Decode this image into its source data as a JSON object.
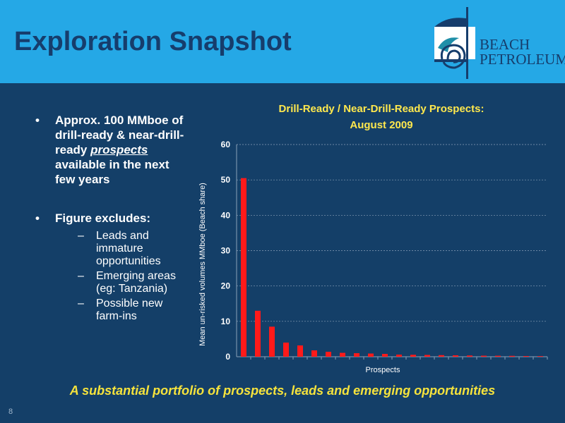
{
  "slide": {
    "title": "Exploration Snapshot",
    "page_number": "8",
    "footer": "A substantial portfolio of prospects, leads and emerging opportunities"
  },
  "logo": {
    "line1": "BEACH",
    "line2": "PETROLEUM"
  },
  "bullets": {
    "first_pre": "Approx. 100 MMboe of drill-ready & near-drill-ready ",
    "first_em": "prospects",
    "first_post": " available in the next few years",
    "second": "Figure excludes:",
    "sub_items": [
      "Leads and immature opportunities",
      "Emerging areas (eg: Tanzania)",
      "Possible new farm-ins"
    ]
  },
  "colors": {
    "header": "#25a8e6",
    "background": "#143f68",
    "title": "#163d6c",
    "chart_title": "#ffe84d",
    "bar": "#ff1a1a",
    "footer": "#f6e33c"
  },
  "chart_data": {
    "type": "bar",
    "title_line1": "Drill-Ready / Near-Drill-Ready Prospects:",
    "title_line2": "August 2009",
    "xlabel": "Prospects",
    "ylabel": "Mean un-risked volumes MMboe (Beach share)",
    "ylim": [
      0,
      60
    ],
    "yticks": [
      0,
      10,
      20,
      30,
      40,
      50,
      60
    ],
    "grid": true,
    "values": [
      50.5,
      13,
      8.5,
      4,
      3.2,
      1.8,
      1.4,
      1.1,
      1.0,
      0.9,
      0.8,
      0.6,
      0.55,
      0.5,
      0.45,
      0.4,
      0.35,
      0.3,
      0.28,
      0.25,
      0.2,
      0.18
    ]
  }
}
